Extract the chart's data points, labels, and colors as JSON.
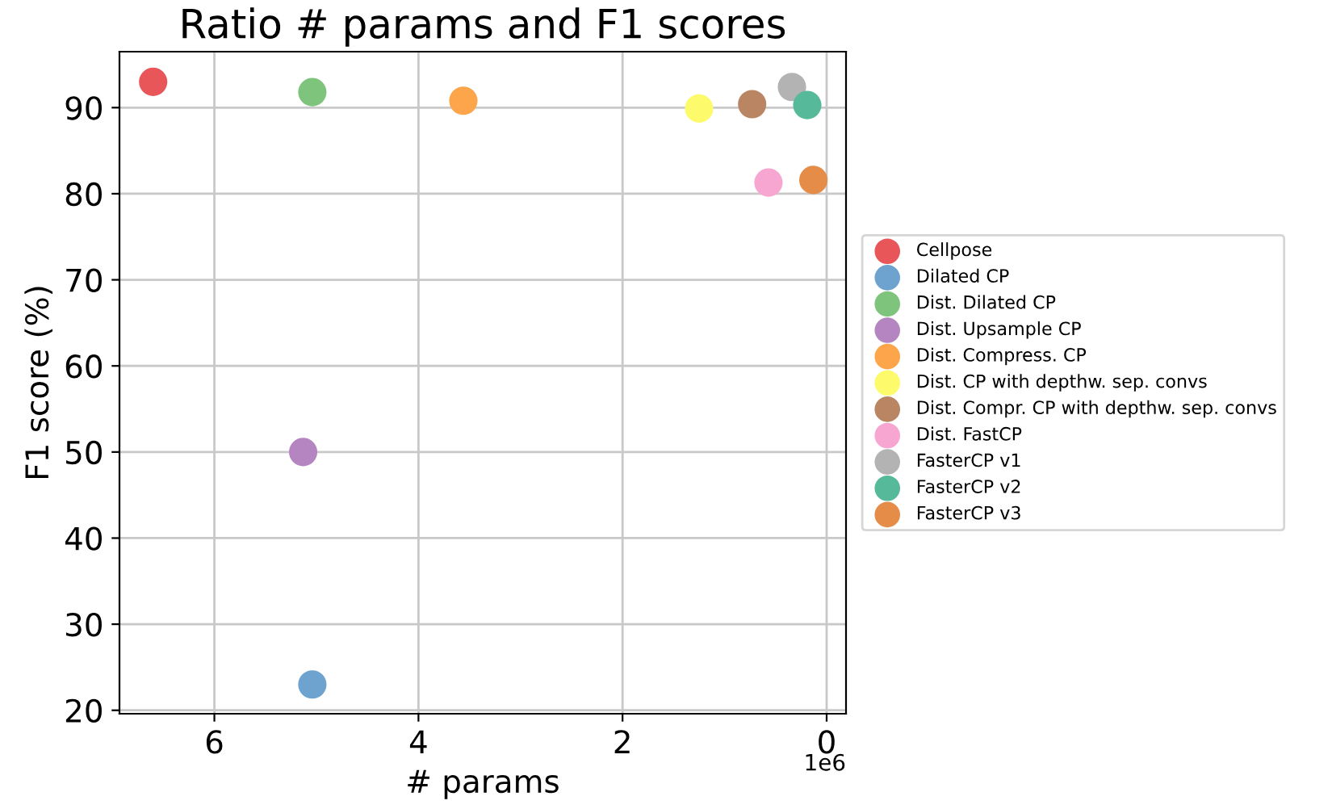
{
  "chart_data": {
    "type": "scatter",
    "title": "Ratio # params and F1 scores",
    "xlabel": "# params",
    "ylabel": "F1 score (%)",
    "annotations": [
      "1e6"
    ],
    "xlim": [
      6.93,
      -0.19
    ],
    "ylim": [
      19.6,
      96.5
    ],
    "xticks": [
      6,
      4,
      2,
      0
    ],
    "yticks": [
      20,
      30,
      40,
      50,
      60,
      70,
      80,
      90
    ],
    "grid": true,
    "legend": "right",
    "marker": "circle",
    "series": [
      {
        "name": "Cellpose",
        "color": "#e9565a",
        "x": [
          6.6
        ],
        "values": [
          93.0
        ]
      },
      {
        "name": "Dilated CP",
        "color": "#6fa3cf",
        "x": [
          5.04
        ],
        "values": [
          23.0
        ]
      },
      {
        "name": "Dist. Dilated CP",
        "color": "#7fc47c",
        "x": [
          5.04
        ],
        "values": [
          91.8
        ]
      },
      {
        "name": "Dist. Upsample CP",
        "color": "#b585c1",
        "x": [
          5.13
        ],
        "values": [
          50.0
        ]
      },
      {
        "name": "Dist. Compress. CP",
        "color": "#fda54b",
        "x": [
          3.56
        ],
        "values": [
          90.8
        ]
      },
      {
        "name": "Dist. CP with depthw. sep. convs",
        "color": "#fdfb6c",
        "x": [
          1.25
        ],
        "values": [
          89.9
        ]
      },
      {
        "name": "Dist. Compr. CP with depthw. sep. convs",
        "color": "#b98563",
        "x": [
          0.73
        ],
        "values": [
          90.4
        ]
      },
      {
        "name": "Dist. FastCP",
        "color": "#f6a6d1",
        "x": [
          0.57
        ],
        "values": [
          81.3
        ]
      },
      {
        "name": "FasterCP v1",
        "color": "#b3b3b3",
        "x": [
          0.34
        ],
        "values": [
          92.4
        ]
      },
      {
        "name": "FasterCP v2",
        "color": "#55b99a",
        "x": [
          0.19
        ],
        "values": [
          90.3
        ]
      },
      {
        "name": "FasterCP v3",
        "color": "#e58d48",
        "x": [
          0.13
        ],
        "values": [
          81.6
        ]
      }
    ]
  }
}
